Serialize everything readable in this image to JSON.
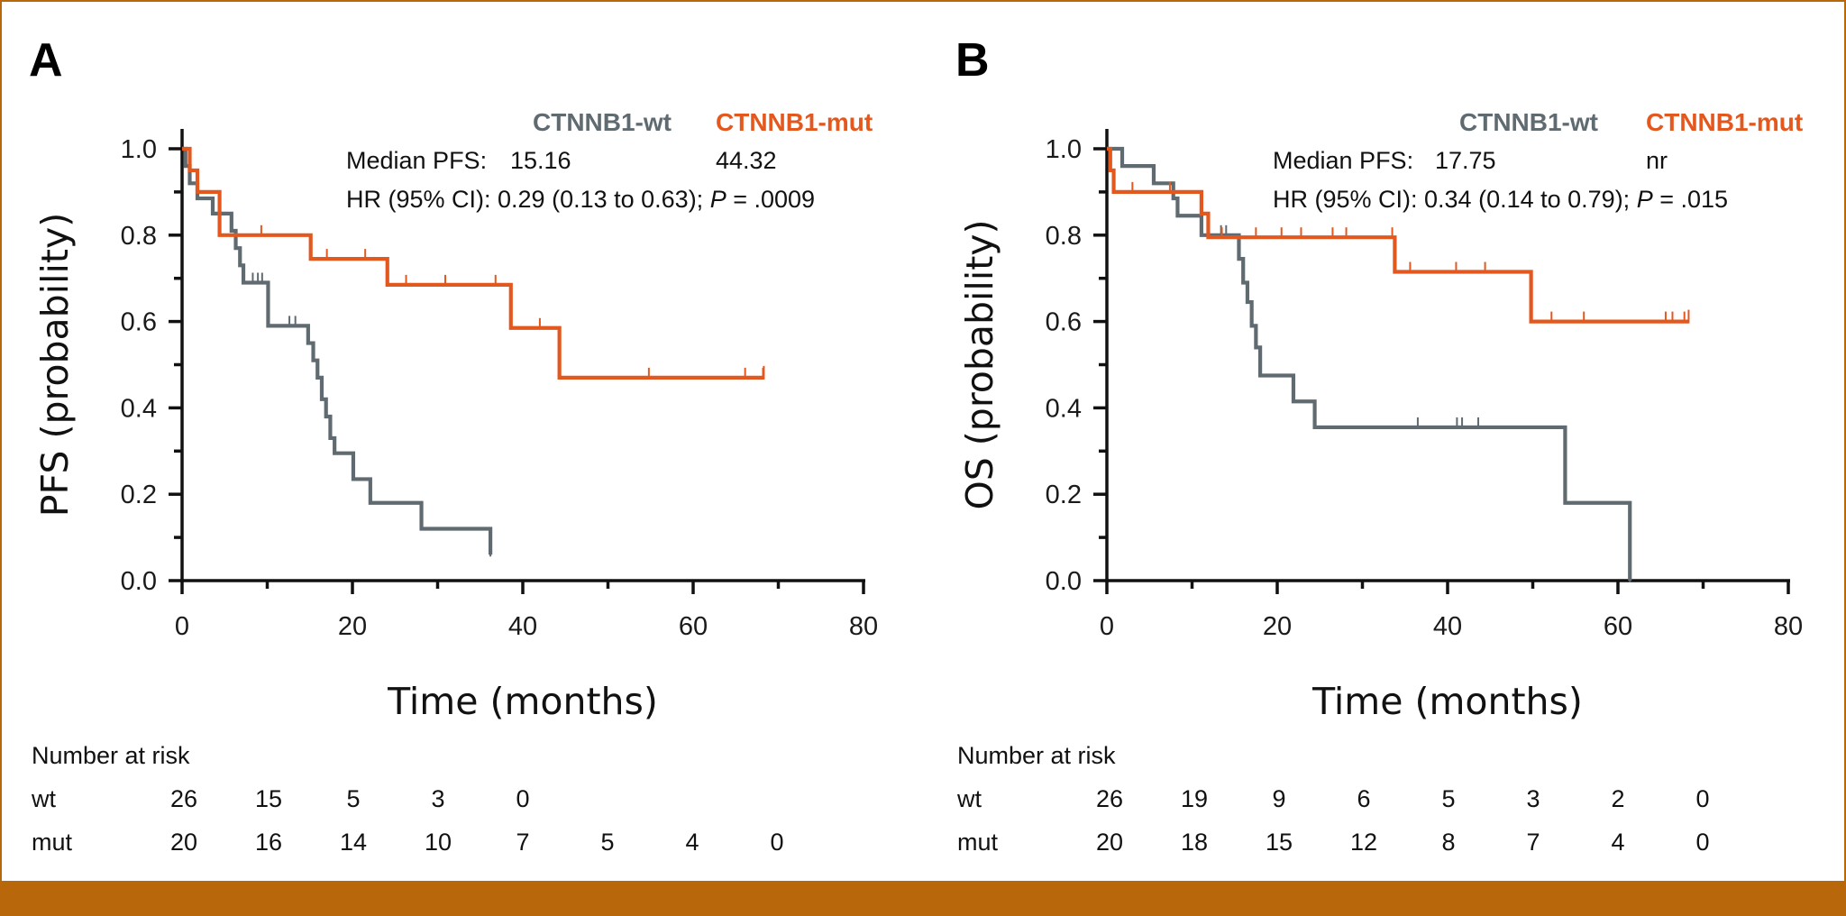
{
  "colors": {
    "wt": "#5f6b71",
    "mut": "#e3581f",
    "border": "#b8680a"
  },
  "chart_data": [
    {
      "type": "line",
      "subtype": "kaplan-meier",
      "panel": "A",
      "xlabel": "Time (months)",
      "ylabel": "PFS (probability)",
      "xlim": [
        0,
        80
      ],
      "ylim": [
        0,
        1.0
      ],
      "xticks": [
        "0",
        "20",
        "40",
        "60",
        "80"
      ],
      "yticks": [
        "0.0",
        "0.2",
        "0.4",
        "0.6",
        "0.8",
        "1.0"
      ],
      "legend": {
        "wt": "CTNNB1-wt",
        "mut": "CTNNB1-mut"
      },
      "median_label": "Median PFS:",
      "median_wt": "15.16",
      "median_mut": "44.32",
      "hr_text": "HR (95% CI): 0.29 (0.13 to 0.63); ",
      "p_label": "P",
      "p_text": " = .0009",
      "series": [
        {
          "name": "CTNNB1-wt",
          "key": "wt",
          "steps": [
            [
              0,
              1.0
            ],
            [
              0.4,
              0.96
            ],
            [
              0.9,
              0.92
            ],
            [
              1.8,
              0.885
            ],
            [
              3.6,
              0.85
            ],
            [
              5.8,
              0.81
            ],
            [
              6.3,
              0.77
            ],
            [
              6.8,
              0.73
            ],
            [
              7.2,
              0.69
            ],
            [
              10.1,
              0.59
            ],
            [
              14.8,
              0.55
            ],
            [
              15.4,
              0.51
            ],
            [
              15.9,
              0.47
            ],
            [
              16.4,
              0.42
            ],
            [
              16.9,
              0.38
            ],
            [
              17.4,
              0.33
            ],
            [
              17.9,
              0.295
            ],
            [
              20.1,
              0.235
            ],
            [
              22.1,
              0.18
            ],
            [
              28.1,
              0.12
            ],
            [
              36.2,
              0.06
            ]
          ],
          "end": 36.2,
          "censor": [
            [
              8.3,
              0.69
            ],
            [
              8.9,
              0.69
            ],
            [
              9.4,
              0.69
            ],
            [
              12.6,
              0.59
            ],
            [
              13.3,
              0.59
            ]
          ]
        },
        {
          "name": "CTNNB1-mut",
          "key": "mut",
          "steps": [
            [
              0,
              1.0
            ],
            [
              0.9,
              0.95
            ],
            [
              1.8,
              0.9
            ],
            [
              4.4,
              0.8
            ],
            [
              15.1,
              0.745
            ],
            [
              24.1,
              0.685
            ],
            [
              38.6,
              0.585
            ],
            [
              44.3,
              0.47
            ]
          ],
          "end": 68.3,
          "censor": [
            [
              9.3,
              0.8
            ],
            [
              17.0,
              0.745
            ],
            [
              21.5,
              0.745
            ],
            [
              26.3,
              0.685
            ],
            [
              30.9,
              0.685
            ],
            [
              36.8,
              0.685
            ],
            [
              42.0,
              0.585
            ],
            [
              54.8,
              0.47
            ],
            [
              66.1,
              0.47
            ],
            [
              68.2,
              0.47
            ]
          ]
        }
      ],
      "risk_table": {
        "title": "Number at risk",
        "times": [
          0,
          10,
          20,
          30,
          40,
          50,
          60,
          70
        ],
        "rows": [
          {
            "label": "wt",
            "counts": [
              "26",
              "15",
              "5",
              "3",
              "0"
            ]
          },
          {
            "label": "mut",
            "counts": [
              "20",
              "16",
              "14",
              "10",
              "7",
              "5",
              "4",
              "0"
            ]
          }
        ]
      }
    },
    {
      "type": "line",
      "subtype": "kaplan-meier",
      "panel": "B",
      "xlabel": "Time (months)",
      "ylabel": "OS (probability)",
      "xlim": [
        0,
        80
      ],
      "ylim": [
        0,
        1.0
      ],
      "xticks": [
        "0",
        "20",
        "40",
        "60",
        "80"
      ],
      "yticks": [
        "0.0",
        "0.2",
        "0.4",
        "0.6",
        "0.8",
        "1.0"
      ],
      "legend": {
        "wt": "CTNNB1-wt",
        "mut": "CTNNB1-mut"
      },
      "median_label": "Median PFS:",
      "median_wt": "17.75",
      "median_mut": "nr",
      "hr_text": "HR (95% CI): 0.34 (0.14 to 0.79); ",
      "p_label": "P",
      "p_text": " = .015",
      "series": [
        {
          "name": "CTNNB1-wt",
          "key": "wt",
          "steps": [
            [
              0,
              1.0
            ],
            [
              1.8,
              0.96
            ],
            [
              5.5,
              0.92
            ],
            [
              7.8,
              0.885
            ],
            [
              8.3,
              0.845
            ],
            [
              11.1,
              0.8
            ],
            [
              15.5,
              0.745
            ],
            [
              16.0,
              0.69
            ],
            [
              16.5,
              0.645
            ],
            [
              17.0,
              0.59
            ],
            [
              17.5,
              0.54
            ],
            [
              18.0,
              0.475
            ],
            [
              21.9,
              0.415
            ],
            [
              24.4,
              0.355
            ],
            [
              53.8,
              0.18
            ],
            [
              61.4,
              0.0
            ]
          ],
          "end": 61.4,
          "censor": [
            [
              13.4,
              0.8
            ],
            [
              14.0,
              0.8
            ],
            [
              36.5,
              0.355
            ],
            [
              41.1,
              0.355
            ],
            [
              41.7,
              0.355
            ],
            [
              43.6,
              0.355
            ]
          ]
        },
        {
          "name": "CTNNB1-mut",
          "key": "mut",
          "steps": [
            [
              0,
              1.0
            ],
            [
              0.4,
              0.95
            ],
            [
              0.8,
              0.9
            ],
            [
              11.1,
              0.85
            ],
            [
              11.9,
              0.795
            ],
            [
              33.8,
              0.715
            ],
            [
              49.8,
              0.6
            ]
          ],
          "end": 68.3,
          "censor": [
            [
              3.0,
              0.9
            ],
            [
              7.4,
              0.9
            ],
            [
              13.5,
              0.795
            ],
            [
              17.5,
              0.795
            ],
            [
              20.5,
              0.795
            ],
            [
              22.8,
              0.795
            ],
            [
              26.5,
              0.795
            ],
            [
              28.1,
              0.795
            ],
            [
              33.5,
              0.795
            ],
            [
              35.6,
              0.715
            ],
            [
              41.0,
              0.715
            ],
            [
              44.4,
              0.715
            ],
            [
              52.2,
              0.6
            ],
            [
              56.0,
              0.6
            ],
            [
              65.6,
              0.6
            ],
            [
              66.4,
              0.6
            ],
            [
              67.8,
              0.6
            ]
          ]
        }
      ],
      "risk_table": {
        "title": "Number at risk",
        "times": [
          0,
          10,
          20,
          30,
          40,
          50,
          60,
          70
        ],
        "rows": [
          {
            "label": "wt",
            "counts": [
              "26",
              "19",
              "9",
              "6",
              "5",
              "3",
              "2",
              "0"
            ]
          },
          {
            "label": "mut",
            "counts": [
              "20",
              "18",
              "15",
              "12",
              "8",
              "7",
              "4",
              "0"
            ]
          }
        ]
      }
    }
  ]
}
